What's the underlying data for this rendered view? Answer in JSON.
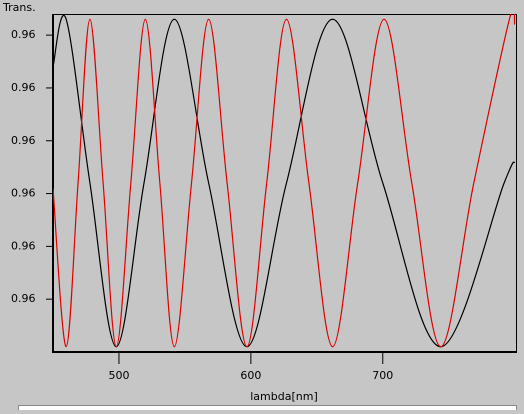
{
  "chart_data": {
    "type": "line",
    "title": "Trans.",
    "xlabel": "lambda[nm]",
    "xlim": [
      450,
      801
    ],
    "xticks": [
      500,
      600,
      700
    ],
    "ylim": [
      0.96,
      0.96064
    ],
    "yticks": [
      {
        "value": 0.9601,
        "label": "0.96"
      },
      {
        "value": 0.9602,
        "label": "0.96"
      },
      {
        "value": 0.9603,
        "label": "0.96"
      },
      {
        "value": 0.9604,
        "label": "0.96"
      },
      {
        "value": 0.9605,
        "label": "0.96"
      },
      {
        "value": 0.9606,
        "label": "0.96"
      }
    ],
    "series": [
      {
        "color": "#000000",
        "x": [
          450,
          460,
          478,
          498,
          519,
          542,
          568,
          597,
          627,
          662,
          700,
          744,
          792,
          800
        ],
        "values": [
          0.96054,
          0.96063,
          0.96032,
          0.96001,
          0.96032,
          0.96063,
          0.96032,
          0.96001,
          0.96032,
          0.96063,
          0.96032,
          0.96001,
          0.96032,
          0.96036
        ]
      },
      {
        "color": "#e00000",
        "x": [
          450,
          460,
          469,
          478,
          488,
          498,
          509,
          520,
          531,
          542,
          555,
          568,
          582,
          597,
          612,
          627,
          644,
          662,
          681,
          701,
          722,
          744,
          769,
          796,
          800
        ],
        "values": [
          0.96031,
          0.96001,
          0.96032,
          0.96063,
          0.96032,
          0.96001,
          0.96032,
          0.96063,
          0.96032,
          0.96001,
          0.96032,
          0.96063,
          0.96032,
          0.96001,
          0.96032,
          0.96063,
          0.96032,
          0.96001,
          0.96032,
          0.96063,
          0.96032,
          0.96001,
          0.96032,
          0.96063,
          0.96062
        ]
      }
    ]
  }
}
